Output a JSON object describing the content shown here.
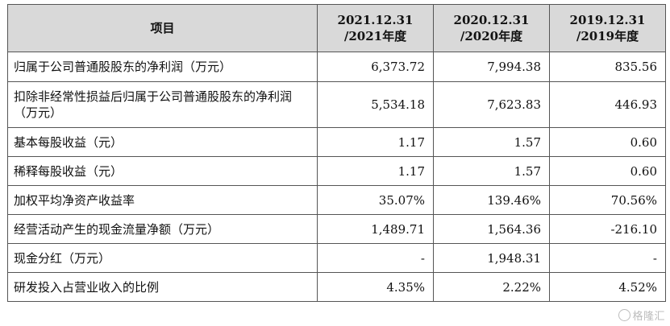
{
  "table": {
    "headers": {
      "item": "项目",
      "col1": [
        "2021.12.31",
        "/2021年度"
      ],
      "col2": [
        "2020.12.31",
        "/2020年度"
      ],
      "col3": [
        "2019.12.31",
        "/2019年度"
      ]
    },
    "rows": [
      {
        "label": "归属于公司普通股股东的净利润（万元）",
        "v": [
          "6,373.72",
          "7,994.38",
          "835.56"
        ]
      },
      {
        "label": "扣除非经常性损益后归属于公司普通股股东的净利润（万元）",
        "v": [
          "5,534.18",
          "7,623.83",
          "446.93"
        ]
      },
      {
        "label": "基本每股收益（元）",
        "v": [
          "1.17",
          "1.57",
          "0.60"
        ]
      },
      {
        "label": "稀释每股收益（元）",
        "v": [
          "1.17",
          "1.57",
          "0.60"
        ]
      },
      {
        "label": "加权平均净资产收益率",
        "v": [
          "35.07%",
          "139.46%",
          "70.56%"
        ]
      },
      {
        "label": "经营活动产生的现金流量净额（万元）",
        "v": [
          "1,489.71",
          "1,564.36",
          "-216.10"
        ]
      },
      {
        "label": "现金分红（万元）",
        "v": [
          "-",
          "1,948.31",
          "-"
        ]
      },
      {
        "label": "研发投入占营业收入的比例",
        "v": [
          "4.35%",
          "2.22%",
          "4.52%"
        ]
      }
    ]
  },
  "watermark": "格隆汇"
}
